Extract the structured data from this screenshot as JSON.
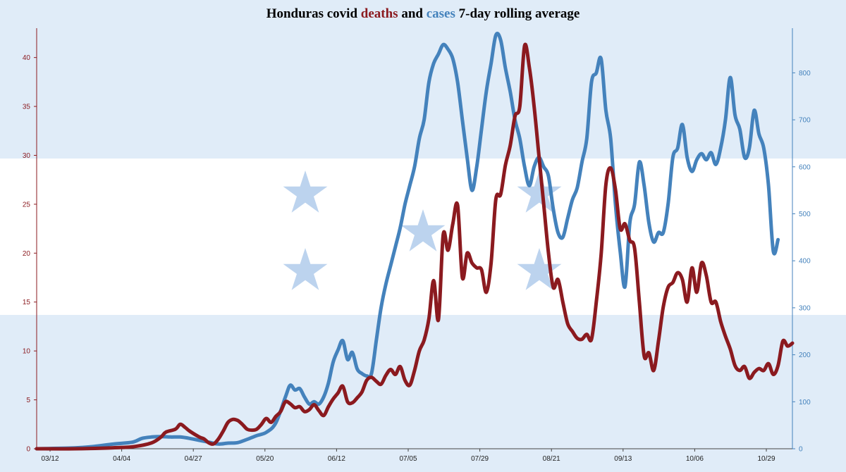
{
  "chart_data": {
    "type": "line",
    "title": {
      "prefix": "Honduras covid ",
      "deaths_word": "deaths",
      "middle": " and ",
      "cases_word": "cases",
      "suffix": " 7-day rolling average"
    },
    "x_ticks": [
      "03/12",
      "04/04",
      "04/27",
      "05/20",
      "06/12",
      "07/05",
      "07/29",
      "08/21",
      "09/13",
      "10/06",
      "10/29"
    ],
    "left_axis": {
      "series": "deaths",
      "ylim": [
        0,
        43
      ],
      "ticks": [
        0,
        5,
        10,
        15,
        20,
        25,
        30,
        35,
        40
      ]
    },
    "right_axis": {
      "series": "cases",
      "ylim": [
        0,
        895
      ],
      "ticks": [
        0,
        100,
        200,
        300,
        400,
        500,
        600,
        700,
        800
      ]
    },
    "colors": {
      "deaths": "#8b1a1f",
      "cases": "#4482bc",
      "band": "#e0ecf8",
      "star": "#bcd3ee"
    },
    "series": [
      {
        "name": "deaths",
        "axis": "left",
        "points": [
          [
            0,
            0
          ],
          [
            8,
            0
          ],
          [
            16,
            0.1
          ],
          [
            20,
            0.2
          ],
          [
            24,
            0.6
          ],
          [
            26,
            1.2
          ],
          [
            27,
            1.7
          ],
          [
            29,
            2
          ],
          [
            30,
            2.5
          ],
          [
            31,
            2.2
          ],
          [
            32,
            1.8
          ],
          [
            34,
            1.2
          ],
          [
            35,
            1
          ],
          [
            36,
            0.6
          ],
          [
            37,
            0.5
          ],
          [
            38,
            1
          ],
          [
            39,
            1.8
          ],
          [
            40,
            2.7
          ],
          [
            41,
            3
          ],
          [
            42,
            2.9
          ],
          [
            43,
            2.5
          ],
          [
            44,
            2
          ],
          [
            45,
            1.9
          ],
          [
            46,
            2
          ],
          [
            47,
            2.5
          ],
          [
            48,
            3.1
          ],
          [
            49,
            2.7
          ],
          [
            50,
            3.3
          ],
          [
            51,
            3.8
          ],
          [
            52,
            4.8
          ],
          [
            53,
            4.6
          ],
          [
            54,
            4.2
          ],
          [
            55,
            4.3
          ],
          [
            56,
            3.8
          ],
          [
            57,
            4
          ],
          [
            58,
            4.5
          ],
          [
            59,
            3.9
          ],
          [
            60,
            3.4
          ],
          [
            61,
            4.3
          ],
          [
            62,
            5.1
          ],
          [
            63,
            5.7
          ],
          [
            64,
            6.4
          ],
          [
            65,
            4.8
          ],
          [
            66,
            4.7
          ],
          [
            67,
            5.2
          ],
          [
            68,
            5.8
          ],
          [
            69,
            7
          ],
          [
            70,
            7.3
          ],
          [
            71,
            6.9
          ],
          [
            72,
            6.6
          ],
          [
            73,
            7.5
          ],
          [
            74,
            8.1
          ],
          [
            75,
            7.6
          ],
          [
            76,
            8.4
          ],
          [
            77,
            7
          ],
          [
            78,
            6.5
          ],
          [
            79,
            8
          ],
          [
            80,
            10
          ],
          [
            81,
            11.1
          ],
          [
            82,
            13.3
          ],
          [
            83,
            17.2
          ],
          [
            84,
            13.2
          ],
          [
            85,
            21.9
          ],
          [
            86,
            20.3
          ],
          [
            87,
            23
          ],
          [
            88,
            24.9
          ],
          [
            89,
            17.5
          ],
          [
            90,
            20
          ],
          [
            91,
            19
          ],
          [
            92,
            18.5
          ],
          [
            93,
            18.3
          ],
          [
            94,
            16
          ],
          [
            95,
            19
          ],
          [
            96,
            25.5
          ],
          [
            97,
            26
          ],
          [
            98,
            29
          ],
          [
            99,
            31
          ],
          [
            100,
            34
          ],
          [
            101,
            35
          ],
          [
            102,
            41.2
          ],
          [
            103,
            39
          ],
          [
            104,
            35
          ],
          [
            105,
            30
          ],
          [
            106,
            25
          ],
          [
            107,
            20
          ],
          [
            108,
            16.5
          ],
          [
            109,
            17.3
          ],
          [
            110,
            15
          ],
          [
            111,
            12.8
          ],
          [
            112,
            12
          ],
          [
            113,
            11.3
          ],
          [
            114,
            11.2
          ],
          [
            115,
            11.7
          ],
          [
            116,
            11.2
          ],
          [
            117,
            15
          ],
          [
            118,
            19.8
          ],
          [
            119,
            27
          ],
          [
            120,
            28.7
          ],
          [
            121,
            26.5
          ],
          [
            122,
            22.5
          ],
          [
            123,
            23
          ],
          [
            124,
            21.3
          ],
          [
            125,
            20.5
          ],
          [
            126,
            15
          ],
          [
            127,
            9.5
          ],
          [
            128,
            9.8
          ],
          [
            129,
            8
          ],
          [
            130,
            11
          ],
          [
            131,
            14.5
          ],
          [
            132,
            16.5
          ],
          [
            133,
            17
          ],
          [
            134,
            18
          ],
          [
            135,
            17.3
          ],
          [
            136,
            15
          ],
          [
            137,
            18.5
          ],
          [
            138,
            16
          ],
          [
            139,
            19
          ],
          [
            140,
            17.7
          ],
          [
            141,
            15
          ],
          [
            142,
            15
          ],
          [
            143,
            13
          ],
          [
            144,
            11.5
          ],
          [
            145,
            10.2
          ],
          [
            146,
            8.5
          ],
          [
            147,
            8
          ],
          [
            148,
            8.4
          ],
          [
            149,
            7.2
          ],
          [
            150,
            7.8
          ],
          [
            151,
            8.2
          ],
          [
            152,
            8
          ],
          [
            153,
            8.7
          ],
          [
            154,
            7.6
          ],
          [
            155,
            8.5
          ],
          [
            156,
            11
          ],
          [
            157,
            10.5
          ],
          [
            158,
            10.8
          ]
        ]
      },
      {
        "name": "cases",
        "axis": "right",
        "points": [
          [
            0,
            0
          ],
          [
            8,
            2
          ],
          [
            12,
            5
          ],
          [
            16,
            10
          ],
          [
            20,
            14
          ],
          [
            22,
            22
          ],
          [
            24,
            25
          ],
          [
            26,
            26
          ],
          [
            28,
            25
          ],
          [
            30,
            25
          ],
          [
            32,
            22
          ],
          [
            34,
            18
          ],
          [
            36,
            14
          ],
          [
            38,
            10
          ],
          [
            40,
            12
          ],
          [
            42,
            13
          ],
          [
            44,
            20
          ],
          [
            46,
            28
          ],
          [
            48,
            35
          ],
          [
            50,
            55
          ],
          [
            52,
            110
          ],
          [
            53,
            135
          ],
          [
            54,
            125
          ],
          [
            55,
            128
          ],
          [
            56,
            110
          ],
          [
            57,
            95
          ],
          [
            58,
            100
          ],
          [
            59,
            95
          ],
          [
            60,
            110
          ],
          [
            61,
            140
          ],
          [
            62,
            185
          ],
          [
            63,
            210
          ],
          [
            64,
            230
          ],
          [
            65,
            190
          ],
          [
            66,
            205
          ],
          [
            67,
            170
          ],
          [
            68,
            160
          ],
          [
            69,
            155
          ],
          [
            70,
            160
          ],
          [
            71,
            230
          ],
          [
            72,
            300
          ],
          [
            73,
            350
          ],
          [
            74,
            390
          ],
          [
            75,
            430
          ],
          [
            76,
            470
          ],
          [
            77,
            520
          ],
          [
            78,
            560
          ],
          [
            79,
            600
          ],
          [
            80,
            660
          ],
          [
            81,
            700
          ],
          [
            82,
            780
          ],
          [
            83,
            820
          ],
          [
            84,
            840
          ],
          [
            85,
            860
          ],
          [
            86,
            850
          ],
          [
            87,
            830
          ],
          [
            88,
            780
          ],
          [
            89,
            700
          ],
          [
            90,
            620
          ],
          [
            91,
            550
          ],
          [
            92,
            600
          ],
          [
            93,
            680
          ],
          [
            94,
            760
          ],
          [
            95,
            820
          ],
          [
            96,
            880
          ],
          [
            97,
            870
          ],
          [
            98,
            810
          ],
          [
            99,
            760
          ],
          [
            100,
            700
          ],
          [
            101,
            660
          ],
          [
            102,
            600
          ],
          [
            103,
            560
          ],
          [
            104,
            600
          ],
          [
            105,
            620
          ],
          [
            106,
            600
          ],
          [
            107,
            580
          ],
          [
            108,
            510
          ],
          [
            109,
            460
          ],
          [
            110,
            450
          ],
          [
            111,
            490
          ],
          [
            112,
            530
          ],
          [
            113,
            555
          ],
          [
            114,
            610
          ],
          [
            115,
            660
          ],
          [
            116,
            780
          ],
          [
            117,
            800
          ],
          [
            118,
            830
          ],
          [
            119,
            720
          ],
          [
            120,
            660
          ],
          [
            121,
            520
          ],
          [
            122,
            420
          ],
          [
            123,
            345
          ],
          [
            124,
            480
          ],
          [
            125,
            520
          ],
          [
            126,
            610
          ],
          [
            127,
            560
          ],
          [
            128,
            480
          ],
          [
            129,
            440
          ],
          [
            130,
            460
          ],
          [
            131,
            460
          ],
          [
            132,
            520
          ],
          [
            133,
            620
          ],
          [
            134,
            640
          ],
          [
            135,
            690
          ],
          [
            136,
            620
          ],
          [
            137,
            590
          ],
          [
            138,
            615
          ],
          [
            139,
            628
          ],
          [
            140,
            615
          ],
          [
            141,
            630
          ],
          [
            142,
            605
          ],
          [
            143,
            640
          ],
          [
            144,
            700
          ],
          [
            145,
            790
          ],
          [
            146,
            710
          ],
          [
            147,
            680
          ],
          [
            148,
            620
          ],
          [
            149,
            640
          ],
          [
            150,
            720
          ],
          [
            151,
            670
          ],
          [
            152,
            640
          ],
          [
            153,
            560
          ],
          [
            154,
            420
          ],
          [
            155,
            445
          ]
        ]
      }
    ]
  }
}
